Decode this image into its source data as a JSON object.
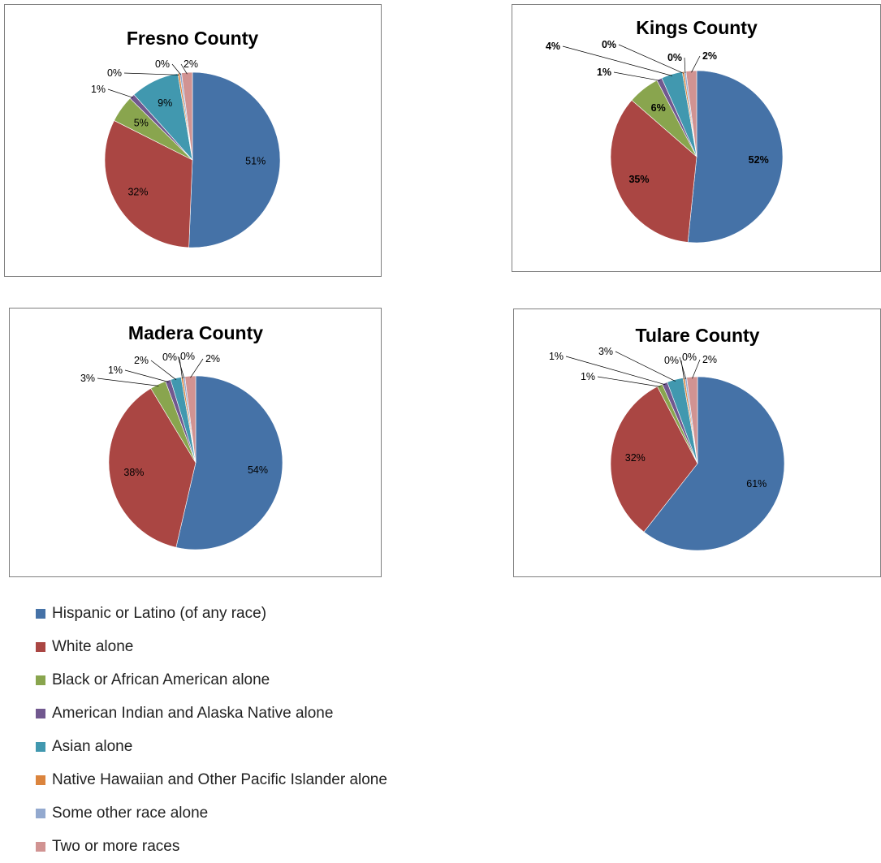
{
  "chart_data": [
    {
      "type": "pie",
      "title": "Fresno County",
      "labels": [
        "51%",
        "32%",
        "5%",
        "1%",
        "9%",
        "0%",
        "0%",
        "2%"
      ],
      "values": [
        51,
        32,
        5,
        1,
        9,
        0,
        0,
        2
      ],
      "label_weight": "normal"
    },
    {
      "type": "pie",
      "title": "Kings County",
      "labels": [
        "52%",
        "35%",
        "6%",
        "1%",
        "4%",
        "0%",
        "0%",
        "2%"
      ],
      "values": [
        52,
        35,
        6,
        1,
        4,
        0,
        0,
        2
      ],
      "label_weight": "bold"
    },
    {
      "type": "pie",
      "title": "Madera County",
      "labels": [
        "54%",
        "38%",
        "3%",
        "1%",
        "2%",
        "0%",
        "0%",
        "2%"
      ],
      "values": [
        54,
        38,
        3,
        1,
        2,
        0,
        0,
        2
      ],
      "label_weight": "normal"
    },
    {
      "type": "pie",
      "title": "Tulare County",
      "labels": [
        "61%",
        "32%",
        "1%",
        "1%",
        "3%",
        "0%",
        "0%",
        "2%"
      ],
      "values": [
        61,
        32,
        1,
        1,
        3,
        0,
        0,
        2
      ],
      "label_weight": "normal"
    }
  ],
  "legend": [
    {
      "label": "Hispanic or Latino (of any race)",
      "color": "#4572a7"
    },
    {
      "label": "White alone",
      "color": "#aa4643"
    },
    {
      "label": "Black or African American alone",
      "color": "#89a54e"
    },
    {
      "label": "American Indian and Alaska Native alone",
      "color": "#71588f"
    },
    {
      "label": "Asian alone",
      "color": "#4198af"
    },
    {
      "label": "Native Hawaiian and Other Pacific Islander alone",
      "color": "#db843d"
    },
    {
      "label": "Some other race alone",
      "color": "#93a9cf"
    },
    {
      "label": "Two or more races",
      "color": "#d19392"
    }
  ]
}
